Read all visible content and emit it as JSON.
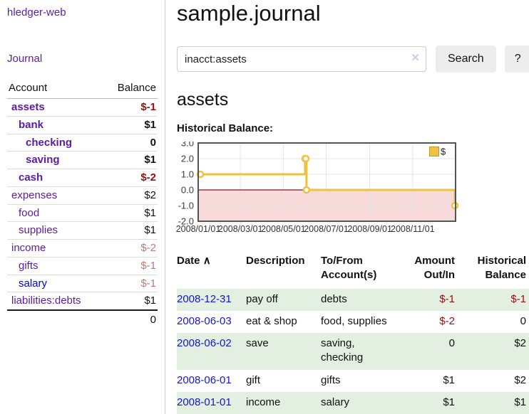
{
  "app": {
    "title": "hledger-web"
  },
  "colors": {
    "accent_purple": "#5a1ca8",
    "link_blue": "#0000dd",
    "negative_strong": "#9e0e0e",
    "negative_dim": "#c17878",
    "row_green": "#e2efe1",
    "series_gold": "#EDC240",
    "chart_negative_bg": "#f9dada",
    "zero_line": "#871616"
  },
  "sidebar": {
    "journal_link": "Journal",
    "accounts_table": {
      "headers": {
        "account": "Account",
        "balance": "Balance"
      },
      "rows": [
        {
          "name": "assets",
          "balance": "$-1",
          "indent": 1,
          "bold": true,
          "negative": "strong"
        },
        {
          "name": "bank",
          "balance": "$1",
          "indent": 2,
          "bold": true
        },
        {
          "name": "checking",
          "balance": "0",
          "indent": 3,
          "bold": true
        },
        {
          "name": "saving",
          "balance": "$1",
          "indent": 3,
          "bold": true
        },
        {
          "name": "cash",
          "balance": "$-2",
          "indent": 2,
          "bold": true,
          "negative": "strong"
        },
        {
          "name": "expenses",
          "balance": "$2",
          "indent": 1
        },
        {
          "name": "food",
          "balance": "$1",
          "indent": 2
        },
        {
          "name": "supplies",
          "balance": "$1",
          "indent": 2
        },
        {
          "name": "income",
          "balance": "$-2",
          "indent": 1,
          "negative": "dim"
        },
        {
          "name": "gifts",
          "balance": "$-1",
          "indent": 2,
          "negative": "dim"
        },
        {
          "name": "salary",
          "balance": "$-1",
          "indent": 2,
          "negative": "dim",
          "link_style": "unvisited"
        },
        {
          "name": "liabilities:debts",
          "balance": "$1",
          "indent": 1
        }
      ],
      "total": "0"
    }
  },
  "main": {
    "title": "sample.journal",
    "search": {
      "value": "inacct:assets",
      "clear_icon": "✕",
      "button": "Search",
      "help_button": "?"
    },
    "account_heading": "assets",
    "chart_heading": "Historical Balance:"
  },
  "chart_data": {
    "type": "line",
    "step": true,
    "title": "Historical Balance:",
    "x": [
      "2008-01-01",
      "2008-06-01",
      "2008-06-02",
      "2008-06-03",
      "2008-12-31"
    ],
    "series": [
      {
        "name": "$",
        "values": [
          1,
          2,
          2,
          0,
          -1
        ]
      }
    ],
    "xlim": [
      "2008-01-01",
      "2009-01-01"
    ],
    "ylim": [
      -2,
      3
    ],
    "yticks": [
      3.0,
      2.0,
      1.0,
      0.0,
      -1.0,
      -2.0
    ],
    "ytick_labels": [
      "3.0",
      "2.0",
      "1.0",
      "0.0",
      "-1.0",
      "-2.0"
    ],
    "xticks": [
      "2008-01-01",
      "2008-03-01",
      "2008-05-01",
      "2008-07-01",
      "2008-09-01",
      "2008-11-01"
    ],
    "xtick_labels": [
      "2008/01/01",
      "2008/03/01",
      "2008/05/01",
      "2008/07/01",
      "2008/09/01",
      "2008/11/01"
    ],
    "grid": true,
    "legend": [
      {
        "label": "$",
        "color": "#EDC240"
      }
    ],
    "legend_position": "top-right",
    "negative_region_shaded": true
  },
  "register": {
    "headers": {
      "date": "Date",
      "sort_arrow": "∧",
      "description": "Description",
      "accounts": "To/From\nAccount(s)",
      "amount": "Amount\nOut/In",
      "balance": "Historical\nBalance"
    },
    "rows": [
      {
        "date": "2008-12-31",
        "description": "pay off",
        "accounts": "debts",
        "amount": "$-1",
        "balance": "$-1"
      },
      {
        "date": "2008-06-03",
        "description": "eat & shop",
        "accounts": "food, supplies",
        "amount": "$-2",
        "balance": "0"
      },
      {
        "date": "2008-06-02",
        "description": "save",
        "accounts": "saving, checking",
        "amount": "0",
        "balance": "$2"
      },
      {
        "date": "2008-06-01",
        "description": "gift",
        "accounts": "gifts",
        "amount": "$1",
        "balance": "$2"
      },
      {
        "date": "2008-01-01",
        "description": "income",
        "accounts": "salary",
        "amount": "$1",
        "balance": "$1"
      }
    ]
  }
}
